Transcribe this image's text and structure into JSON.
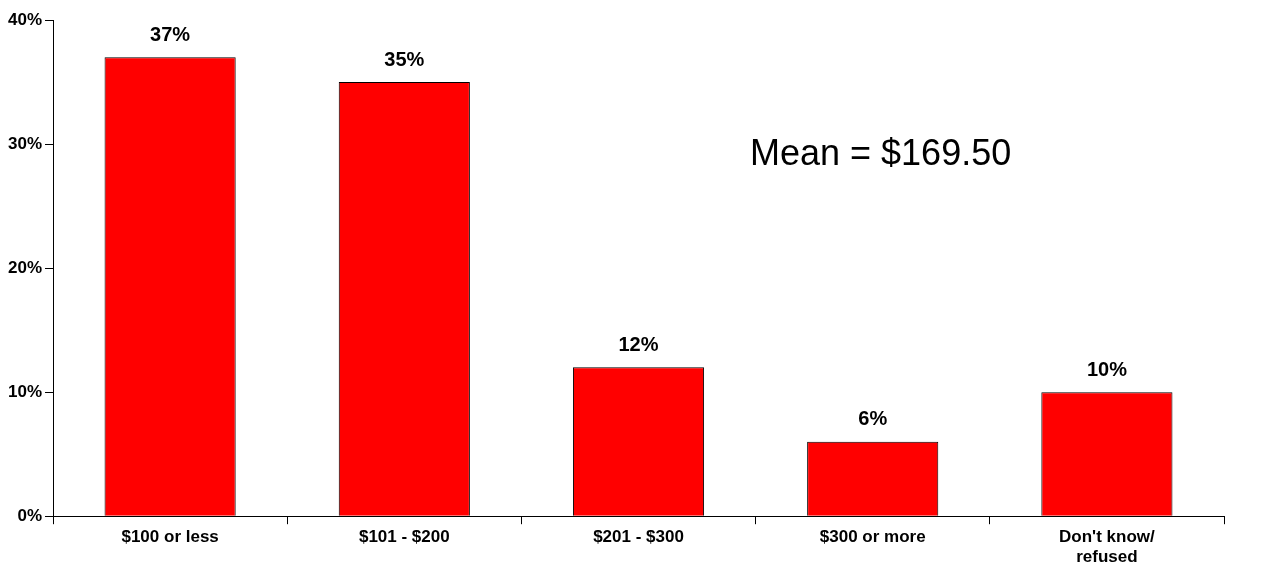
{
  "chart_data": {
    "type": "bar",
    "categories": [
      "$100 or less",
      "$101 - $200",
      "$201 - $300",
      "$300 or more",
      "Don't know/ refused"
    ],
    "values": [
      37,
      35,
      12,
      6,
      10
    ],
    "value_labels": [
      "37%",
      "35%",
      "12%",
      "6%",
      "10%"
    ],
    "color": "#ff0000",
    "ylim": [
      0,
      40
    ],
    "yticks": [
      {
        "value": 0,
        "label": "0%"
      },
      {
        "value": 10,
        "label": "10%"
      },
      {
        "value": 20,
        "label": "20%"
      },
      {
        "value": 30,
        "label": "30%"
      },
      {
        "value": 40,
        "label": "40%"
      }
    ],
    "annotations": [
      "Mean = $169.50"
    ],
    "grid": false,
    "legend": false
  }
}
